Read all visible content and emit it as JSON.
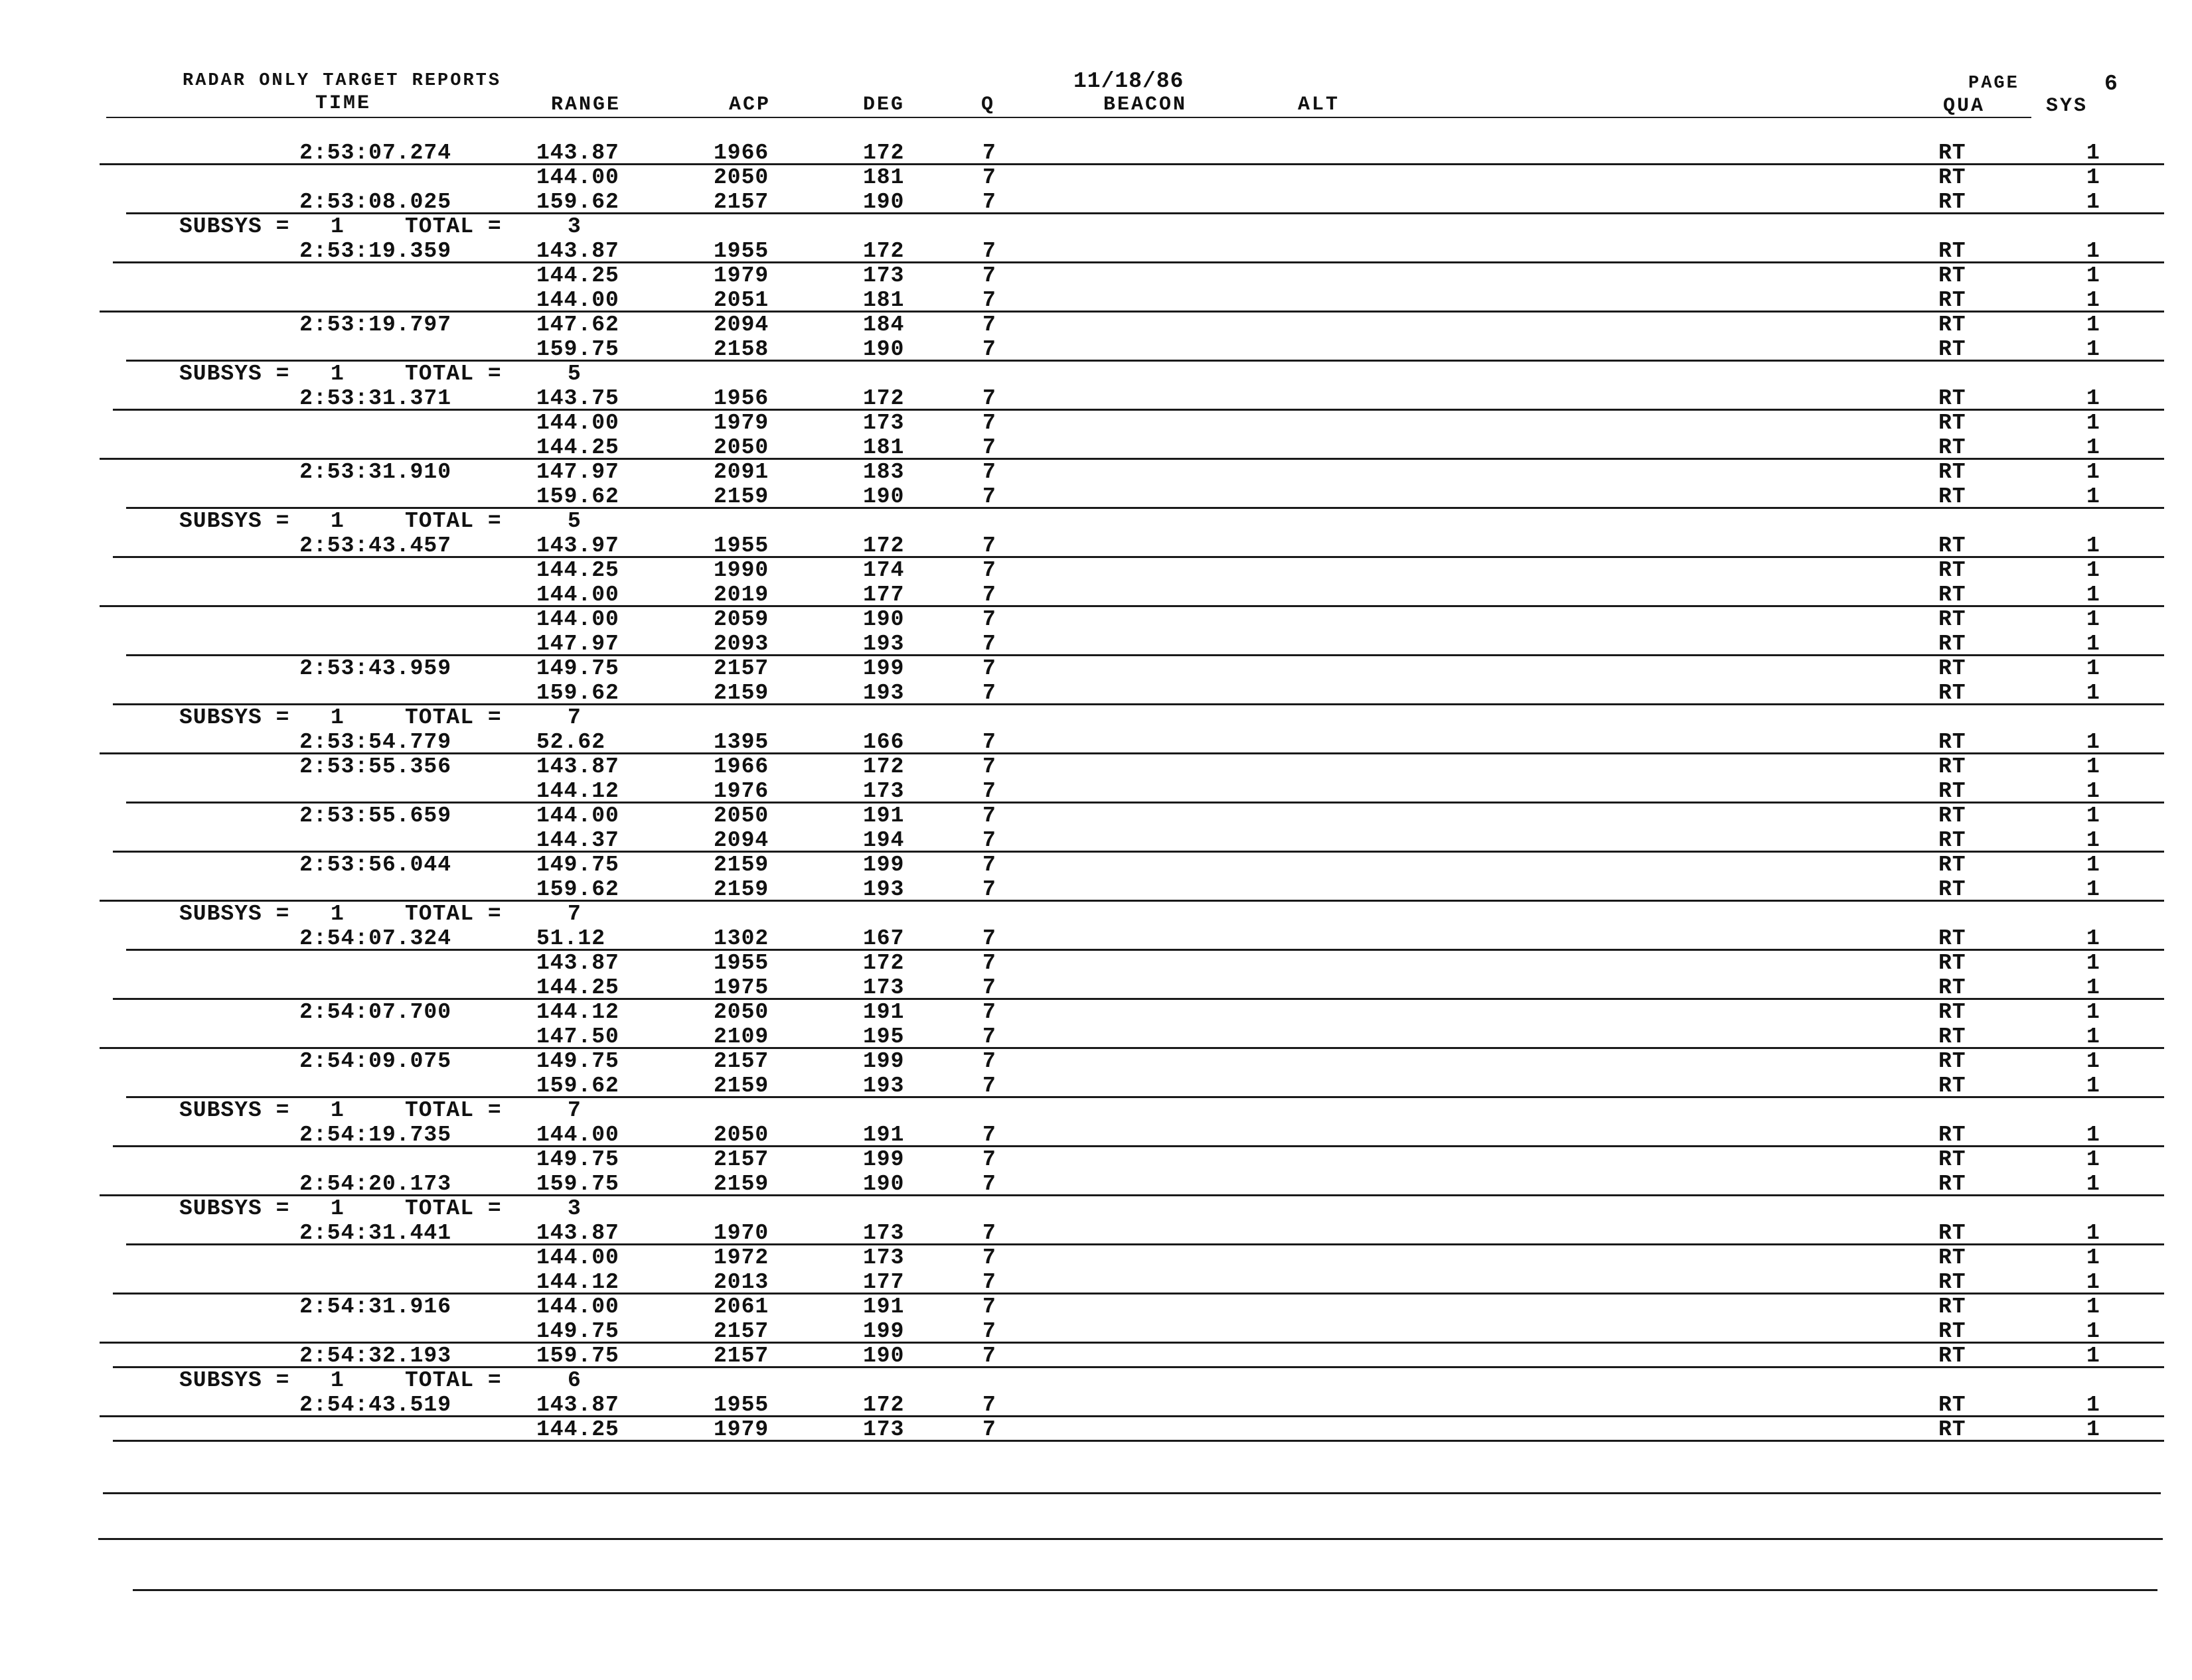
{
  "header": {
    "title": "RADAR ONLY TARGET REPORTS",
    "date": "11/18/86",
    "page_label": "PAGE",
    "page_number": "6",
    "columns": {
      "time": "TIME",
      "range": "RANGE",
      "acp": "ACP",
      "deg": "DEG",
      "q": "Q",
      "beacon": "BEACON",
      "alt": "ALT",
      "qua": "QUA",
      "sys": "SYS"
    }
  },
  "subsys_label": "SUBSYS =",
  "total_label": "TOTAL =",
  "groups": [
    {
      "rows": [
        [
          "2:53:07.274",
          "143.87",
          "1966",
          "172",
          "7",
          "RT",
          "1"
        ],
        [
          "",
          "144.00",
          "2050",
          "181",
          "7",
          "RT",
          "1"
        ],
        [
          "2:53:08.025",
          "159.62",
          "2157",
          "190",
          "7",
          "RT",
          "1"
        ]
      ],
      "subsys": "1",
      "total": "3"
    },
    {
      "rows": [
        [
          "2:53:19.359",
          "143.87",
          "1955",
          "172",
          "7",
          "RT",
          "1"
        ],
        [
          "",
          "144.25",
          "1979",
          "173",
          "7",
          "RT",
          "1"
        ],
        [
          "",
          "144.00",
          "2051",
          "181",
          "7",
          "RT",
          "1"
        ],
        [
          "2:53:19.797",
          "147.62",
          "2094",
          "184",
          "7",
          "RT",
          "1"
        ],
        [
          "",
          "159.75",
          "2158",
          "190",
          "7",
          "RT",
          "1"
        ]
      ],
      "subsys": "1",
      "total": "5"
    },
    {
      "rows": [
        [
          "2:53:31.371",
          "143.75",
          "1956",
          "172",
          "7",
          "RT",
          "1"
        ],
        [
          "",
          "144.00",
          "1979",
          "173",
          "7",
          "RT",
          "1"
        ],
        [
          "",
          "144.25",
          "2050",
          "181",
          "7",
          "RT",
          "1"
        ],
        [
          "2:53:31.910",
          "147.97",
          "2091",
          "183",
          "7",
          "RT",
          "1"
        ],
        [
          "",
          "159.62",
          "2159",
          "190",
          "7",
          "RT",
          "1"
        ]
      ],
      "subsys": "1",
      "total": "5"
    },
    {
      "rows": [
        [
          "2:53:43.457",
          "143.97",
          "1955",
          "172",
          "7",
          "RT",
          "1"
        ],
        [
          "",
          "144.25",
          "1990",
          "174",
          "7",
          "RT",
          "1"
        ],
        [
          "",
          "144.00",
          "2019",
          "177",
          "7",
          "RT",
          "1"
        ],
        [
          "",
          "144.00",
          "2059",
          "190",
          "7",
          "RT",
          "1"
        ],
        [
          "",
          "147.97",
          "2093",
          "193",
          "7",
          "RT",
          "1"
        ],
        [
          "2:53:43.959",
          "149.75",
          "2157",
          "199",
          "7",
          "RT",
          "1"
        ],
        [
          "",
          "159.62",
          "2159",
          "193",
          "7",
          "RT",
          "1"
        ]
      ],
      "subsys": "1",
      "total": "7"
    },
    {
      "rows": [
        [
          "2:53:54.779",
          "52.62",
          "1395",
          "166",
          "7",
          "RT",
          "1"
        ],
        [
          "2:53:55.356",
          "143.87",
          "1966",
          "172",
          "7",
          "RT",
          "1"
        ],
        [
          "",
          "144.12",
          "1976",
          "173",
          "7",
          "RT",
          "1"
        ],
        [
          "2:53:55.659",
          "144.00",
          "2050",
          "191",
          "7",
          "RT",
          "1"
        ],
        [
          "",
          "144.37",
          "2094",
          "194",
          "7",
          "RT",
          "1"
        ],
        [
          "2:53:56.044",
          "149.75",
          "2159",
          "199",
          "7",
          "RT",
          "1"
        ],
        [
          "",
          "159.62",
          "2159",
          "193",
          "7",
          "RT",
          "1"
        ]
      ],
      "subsys": "1",
      "total": "7"
    },
    {
      "rows": [
        [
          "2:54:07.324",
          "51.12",
          "1302",
          "167",
          "7",
          "RT",
          "1"
        ],
        [
          "",
          "143.87",
          "1955",
          "172",
          "7",
          "RT",
          "1"
        ],
        [
          "",
          "144.25",
          "1975",
          "173",
          "7",
          "RT",
          "1"
        ],
        [
          "2:54:07.700",
          "144.12",
          "2050",
          "191",
          "7",
          "RT",
          "1"
        ],
        [
          "",
          "147.50",
          "2109",
          "195",
          "7",
          "RT",
          "1"
        ],
        [
          "2:54:09.075",
          "149.75",
          "2157",
          "199",
          "7",
          "RT",
          "1"
        ],
        [
          "",
          "159.62",
          "2159",
          "193",
          "7",
          "RT",
          "1"
        ]
      ],
      "subsys": "1",
      "total": "7"
    },
    {
      "rows": [
        [
          "2:54:19.735",
          "144.00",
          "2050",
          "191",
          "7",
          "RT",
          "1"
        ],
        [
          "",
          "149.75",
          "2157",
          "199",
          "7",
          "RT",
          "1"
        ],
        [
          "2:54:20.173",
          "159.75",
          "2159",
          "190",
          "7",
          "RT",
          "1"
        ]
      ],
      "subsys": "1",
      "total": "3"
    },
    {
      "rows": [
        [
          "2:54:31.441",
          "143.87",
          "1970",
          "173",
          "7",
          "RT",
          "1"
        ],
        [
          "",
          "144.00",
          "1972",
          "173",
          "7",
          "RT",
          "1"
        ],
        [
          "",
          "144.12",
          "2013",
          "177",
          "7",
          "RT",
          "1"
        ],
        [
          "2:54:31.916",
          "144.00",
          "2061",
          "191",
          "7",
          "RT",
          "1"
        ],
        [
          "",
          "149.75",
          "2157",
          "199",
          "7",
          "RT",
          "1"
        ],
        [
          "2:54:32.193",
          "159.75",
          "2157",
          "190",
          "7",
          "RT",
          "1"
        ]
      ],
      "subsys": "1",
      "total": "6"
    },
    {
      "rows": [
        [
          "2:54:43.519",
          "143.87",
          "1955",
          "172",
          "7",
          "RT",
          "1"
        ],
        [
          "",
          "144.25",
          "1979",
          "173",
          "7",
          "RT",
          "1"
        ]
      ]
    }
  ]
}
